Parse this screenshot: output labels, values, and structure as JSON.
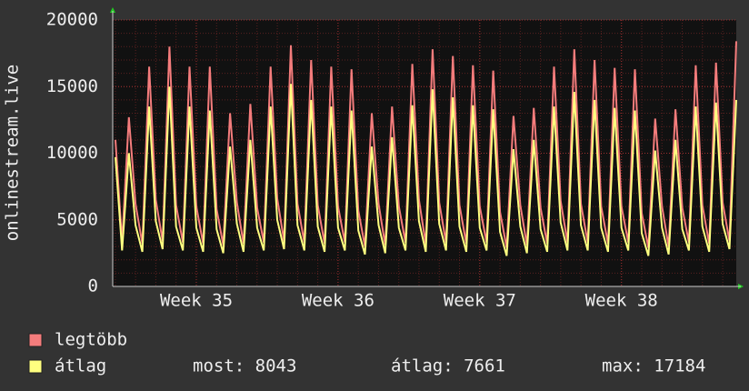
{
  "chart_data": {
    "type": "line",
    "y_label": "onlinestream.live",
    "xlim": [
      34.41,
      38.81
    ],
    "xticks": [
      {
        "value": 35,
        "label": "Week 35"
      },
      {
        "value": 36,
        "label": "Week 36"
      },
      {
        "value": 37,
        "label": "Week 37"
      },
      {
        "value": 38,
        "label": "Week 38"
      }
    ],
    "ylim": [
      0,
      20000
    ],
    "yticks": [
      0,
      5000,
      10000,
      15000,
      20000
    ],
    "grid": true,
    "x": [
      34.429,
      34.476,
      34.524,
      34.571,
      34.619,
      34.667,
      34.714,
      34.762,
      34.81,
      34.857,
      34.905,
      34.952,
      35,
      35.048,
      35.095,
      35.143,
      35.19,
      35.238,
      35.286,
      35.333,
      35.381,
      35.429,
      35.476,
      35.524,
      35.571,
      35.619,
      35.667,
      35.714,
      35.762,
      35.81,
      35.857,
      35.905,
      35.952,
      36,
      36.048,
      36.095,
      36.143,
      36.19,
      36.238,
      36.286,
      36.333,
      36.381,
      36.429,
      36.476,
      36.524,
      36.571,
      36.619,
      36.667,
      36.714,
      36.762,
      36.81,
      36.857,
      36.905,
      36.952,
      37,
      37.048,
      37.095,
      37.143,
      37.19,
      37.238,
      37.286,
      37.333,
      37.381,
      37.429,
      37.476,
      37.524,
      37.571,
      37.619,
      37.667,
      37.714,
      37.762,
      37.81,
      37.857,
      37.905,
      37.952,
      38,
      38.048,
      38.095,
      38.143,
      38.19,
      38.238,
      38.286,
      38.333,
      38.381,
      38.429,
      38.476,
      38.524,
      38.571,
      38.619,
      38.667,
      38.714,
      38.762,
      38.81
    ],
    "series": [
      {
        "name": "legtöbb",
        "color": "#f47c7c",
        "values": [
          11000,
          3300,
          12700,
          6200,
          3200,
          16500,
          6500,
          3400,
          18000,
          6100,
          3300,
          16500,
          6000,
          3200,
          16500,
          5800,
          3100,
          13000,
          6300,
          3200,
          13700,
          5900,
          3300,
          16500,
          6600,
          3400,
          18100,
          6200,
          3300,
          17000,
          6100,
          3200,
          16500,
          6000,
          3300,
          16300,
          5700,
          3000,
          13000,
          6200,
          3100,
          13500,
          6000,
          3300,
          16700,
          6500,
          3200,
          17800,
          6300,
          3300,
          17300,
          6100,
          3200,
          16600,
          6000,
          3300,
          16200,
          5600,
          2900,
          12800,
          6100,
          3100,
          13400,
          5900,
          3200,
          16500,
          6400,
          3300,
          17800,
          6200,
          3300,
          17000,
          6000,
          3200,
          16400,
          6000,
          3300,
          16300,
          5500,
          2900,
          12600,
          6000,
          3000,
          13300,
          5900,
          3300,
          16600,
          6100,
          3200,
          16800,
          6300,
          3400,
          18400
        ]
      },
      {
        "name": "átlag",
        "color": "#ffff80",
        "values": [
          9700,
          2700,
          10000,
          4600,
          2600,
          13500,
          4900,
          2800,
          15000,
          4500,
          2700,
          13500,
          4400,
          2600,
          13200,
          4300,
          2500,
          10500,
          4700,
          2600,
          11000,
          4400,
          2700,
          13500,
          5000,
          2800,
          15200,
          4600,
          2700,
          14000,
          4500,
          2600,
          13500,
          4400,
          2700,
          13200,
          4200,
          2400,
          10500,
          4600,
          2500,
          11200,
          4400,
          2700,
          13600,
          4900,
          2600,
          14800,
          4700,
          2700,
          14200,
          4500,
          2600,
          13600,
          4400,
          2700,
          13300,
          4100,
          2300,
          10300,
          4500,
          2500,
          11000,
          4300,
          2600,
          13500,
          4800,
          2700,
          14600,
          4600,
          2700,
          14000,
          4400,
          2600,
          13400,
          4400,
          2700,
          13200,
          4000,
          2300,
          10200,
          4400,
          2400,
          11000,
          4300,
          2700,
          13500,
          4500,
          2600,
          13800,
          4700,
          2800,
          14000
        ]
      }
    ],
    "stats": [
      "most: 8043",
      "átlag: 7661",
      "max: 17184"
    ]
  }
}
